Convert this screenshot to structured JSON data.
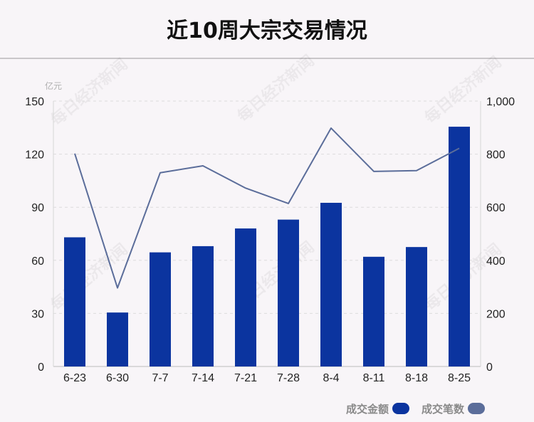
{
  "title": "近10周大宗交易情况",
  "watermark": "每日经济新闻",
  "chart_data": {
    "type": "bar",
    "categories": [
      "6-23",
      "6-30",
      "7-7",
      "7-14",
      "7-21",
      "7-28",
      "8-4",
      "8-11",
      "8-18",
      "8-25"
    ],
    "series": [
      {
        "name": "成交金额",
        "type": "bar",
        "axis": "left",
        "color": "#0b349f",
        "values": [
          73,
          30.5,
          64.5,
          68,
          78,
          83,
          92.5,
          62,
          67.5,
          135.5
        ]
      },
      {
        "name": "成交笔数",
        "type": "line",
        "axis": "right",
        "color": "#5b6d9a",
        "values": [
          802,
          296,
          730,
          756,
          672,
          614,
          898,
          735,
          738,
          822
        ]
      }
    ],
    "y_left": {
      "unit": "亿元",
      "range": [
        0,
        150
      ],
      "ticks": [
        "0",
        "30",
        "60",
        "90",
        "120",
        "150"
      ]
    },
    "y_right": {
      "range": [
        0,
        1000
      ],
      "ticks": [
        "0",
        "200",
        "400",
        "600",
        "800",
        "1,000"
      ]
    },
    "grid": true,
    "legend_position": "bottom-right"
  }
}
